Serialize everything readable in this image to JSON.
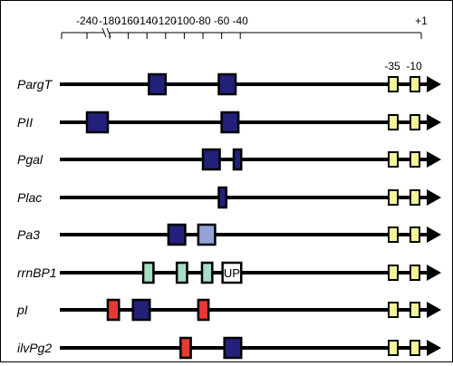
{
  "scale": {
    "ticks": [
      "-240",
      "-180",
      "-160",
      "-140",
      "-120",
      "-100",
      "-80",
      "-60",
      "-40",
      "+1"
    ],
    "core_labels": [
      "-35",
      "-10"
    ]
  },
  "colors": {
    "dark_blue": "#22207a",
    "light_blue": "#94a3d6",
    "light_green": "#a8dcc4",
    "red": "#e43a33",
    "core": "#f4f59a",
    "up": "#ffffff"
  },
  "promoters": [
    {
      "label": "PargT",
      "boxes": [
        {
          "start": -138,
          "end": -120,
          "color": "dark_blue"
        },
        {
          "start": -63,
          "end": -45,
          "color": "dark_blue"
        }
      ]
    },
    {
      "label": "PII",
      "boxes": [
        {
          "start": -240,
          "end": -220,
          "color": "dark_blue"
        },
        {
          "start": -60,
          "end": -42,
          "color": "dark_blue"
        }
      ]
    },
    {
      "label": "Pgal",
      "boxes": [
        {
          "start": -80,
          "end": -62,
          "color": "dark_blue"
        },
        {
          "start": -47,
          "end": -39,
          "color": "dark_blue"
        }
      ]
    },
    {
      "label": "Plac",
      "boxes": [
        {
          "start": -63,
          "end": -55,
          "color": "dark_blue"
        }
      ]
    },
    {
      "label": "Pa3",
      "boxes": [
        {
          "start": -117,
          "end": -99,
          "color": "dark_blue"
        },
        {
          "start": -85,
          "end": -67,
          "color": "light_blue"
        }
      ]
    },
    {
      "label": "rrnBP1",
      "boxes": [
        {
          "start": -144,
          "end": -133,
          "color": "light_green"
        },
        {
          "start": -108,
          "end": -97,
          "color": "light_green"
        },
        {
          "start": -81,
          "end": -70,
          "color": "light_green"
        },
        {
          "start": -59,
          "end": -39,
          "color": "up",
          "text": "UP"
        }
      ]
    },
    {
      "label": "pI",
      "boxes": [
        {
          "start": -182,
          "end": -170,
          "color": "red"
        },
        {
          "start": -155,
          "end": -137,
          "color": "dark_blue"
        },
        {
          "start": -85,
          "end": -74,
          "color": "red"
        }
      ]
    },
    {
      "label": "ilvPg2",
      "boxes": [
        {
          "start": -104,
          "end": -93,
          "color": "red"
        },
        {
          "start": -57,
          "end": -39,
          "color": "dark_blue"
        }
      ]
    }
  ]
}
